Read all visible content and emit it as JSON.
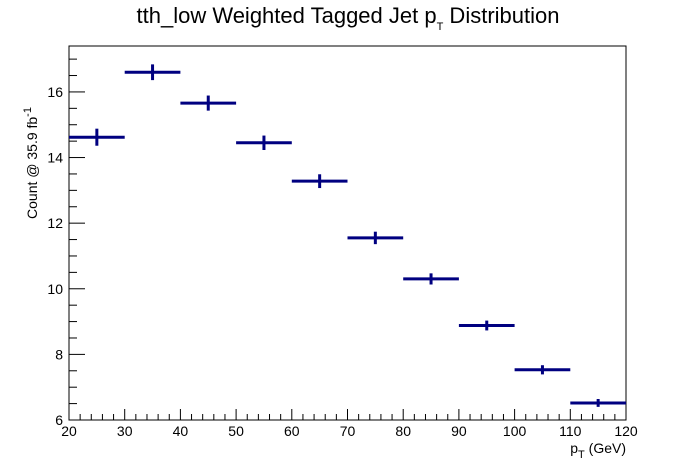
{
  "chart_data": {
    "type": "scatter",
    "title": "tth_low Weighted Tagged Jet p",
    "title_subscript": "T",
    "title_suffix": " Distribution",
    "xlabel": "p",
    "xlabel_subscript": "T",
    "xlabel_suffix": " (GeV)",
    "ylabel": "Count @ 35.9 fb",
    "ylabel_superscript": "-1",
    "xlim": [
      20,
      120
    ],
    "ylim": [
      6,
      17.4
    ],
    "x_ticks": [
      20,
      30,
      40,
      50,
      60,
      70,
      80,
      90,
      100,
      110,
      120
    ],
    "y_ticks": [
      6,
      8,
      10,
      12,
      14,
      16
    ],
    "grid": false,
    "legend": "none",
    "series": [
      {
        "color": "#000080",
        "bin_edges": [
          20,
          30,
          40,
          50,
          60,
          70,
          80,
          90,
          100,
          110,
          120
        ],
        "values": [
          14.62,
          16.6,
          15.66,
          14.45,
          13.28,
          11.55,
          10.3,
          8.88,
          7.53,
          6.52
        ],
        "errors": [
          0.26,
          0.24,
          0.23,
          0.22,
          0.21,
          0.19,
          0.17,
          0.15,
          0.14,
          0.12
        ]
      }
    ]
  }
}
